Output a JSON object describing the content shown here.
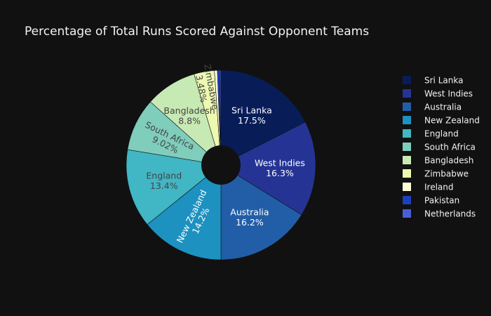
{
  "chart_data": {
    "type": "pie",
    "hole": true,
    "title": "Percentage of Total Runs Scored Against Opponent Teams",
    "legend_position": "right",
    "slices": [
      {
        "label": "Sri Lanka",
        "value": 17.5,
        "text": "17.5%",
        "color": "#081d58",
        "text_color": "#ffffff"
      },
      {
        "label": "West Indies",
        "value": 16.3,
        "text": "16.3%",
        "color": "#253494",
        "text_color": "#ffffff"
      },
      {
        "label": "Australia",
        "value": 16.2,
        "text": "16.2%",
        "color": "#225ea8",
        "text_color": "#ffffff"
      },
      {
        "label": "New Zealand",
        "value": 14.2,
        "text": "14.2%",
        "color": "#1d91c0",
        "text_color": "#ffffff"
      },
      {
        "label": "England",
        "value": 13.4,
        "text": "13.4%",
        "color": "#41b6c4",
        "text_color": "#444444"
      },
      {
        "label": "South Africa",
        "value": 9.02,
        "text": "9.02%",
        "color": "#7fcdbb",
        "text_color": "#444444"
      },
      {
        "label": "Bangladesh",
        "value": 8.8,
        "text": "8.8%",
        "color": "#c7e9b4",
        "text_color": "#444444"
      },
      {
        "label": "Zimbabwe",
        "value": 3.48,
        "text": "3.48%",
        "color": "#edf8b1",
        "text_color": "#444444"
      },
      {
        "label": "Ireland",
        "value": 0.5,
        "text": "",
        "color": "#ffffd9",
        "text_color": "#444444"
      },
      {
        "label": "Pakistan",
        "value": 0.4,
        "text": "",
        "color": "#1e3fbf",
        "text_color": "#ffffff"
      },
      {
        "label": "Netherlands",
        "value": 0.2,
        "text": "",
        "color": "#4a5fd6",
        "text_color": "#ffffff"
      }
    ]
  }
}
